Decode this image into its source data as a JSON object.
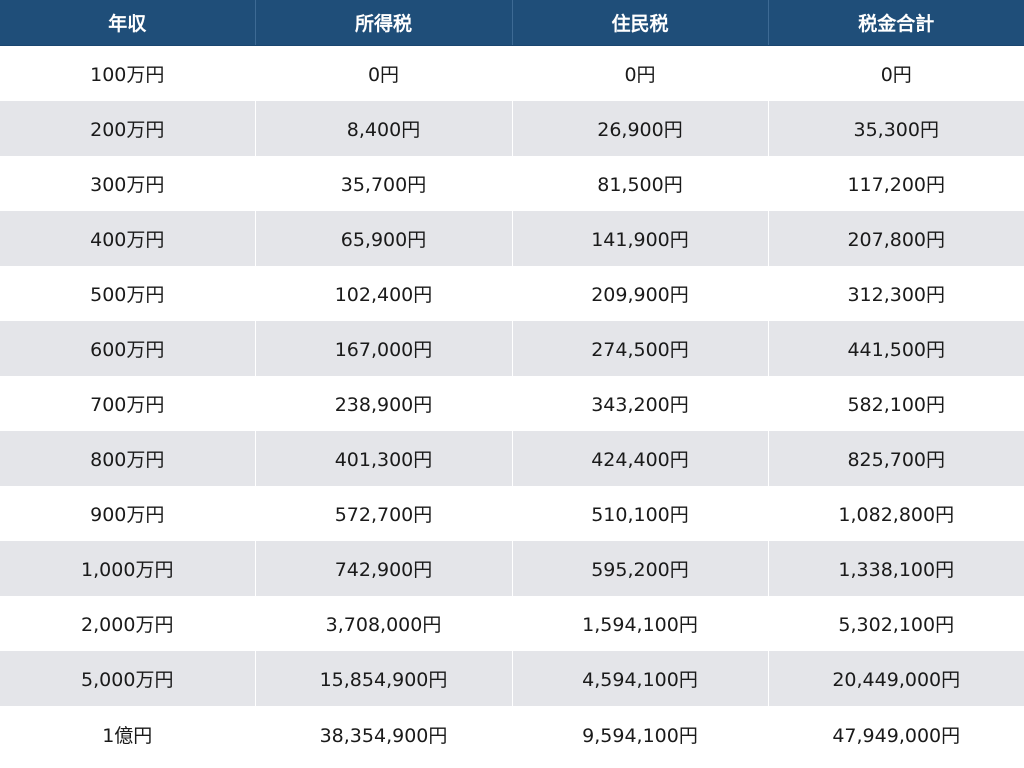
{
  "headers": [
    "年収",
    "所得税",
    "住民税",
    "税金合計"
  ],
  "rows": [
    [
      "100万円",
      "0円",
      "0円",
      "0円"
    ],
    [
      "200万円",
      "8,400円",
      "26,900円",
      "35,300円"
    ],
    [
      "300万円",
      "35,700円",
      "81,500円",
      "117,200円"
    ],
    [
      "400万円",
      "65,900円",
      "141,900円",
      "207,800円"
    ],
    [
      "500万円",
      "102,400円",
      "209,900円",
      "312,300円"
    ],
    [
      "600万円",
      "167,000円",
      "274,500円",
      "441,500円"
    ],
    [
      "700万円",
      "238,900円",
      "343,200円",
      "582,100円"
    ],
    [
      "800万円",
      "401,300円",
      "424,400円",
      "825,700円"
    ],
    [
      "900万円",
      "572,700円",
      "510,100円",
      "1,082,800円"
    ],
    [
      "1,000万円",
      "742,900円",
      "595,200円",
      "1,338,100円"
    ],
    [
      "2,000万円",
      "3,708,000円",
      "1,594,100円",
      "5,302,100円"
    ],
    [
      "5,000万円",
      "15,854,900円",
      "4,594,100円",
      "20,449,000円"
    ],
    [
      "1億円",
      "38,354,900円",
      "9,594,100円",
      "47,949,000円"
    ]
  ],
  "colors": {
    "header_bg": "#1f4e79",
    "header_text": "#ffffff",
    "row_alt_bg": "#e4e5e9",
    "row_bg": "#ffffff"
  }
}
